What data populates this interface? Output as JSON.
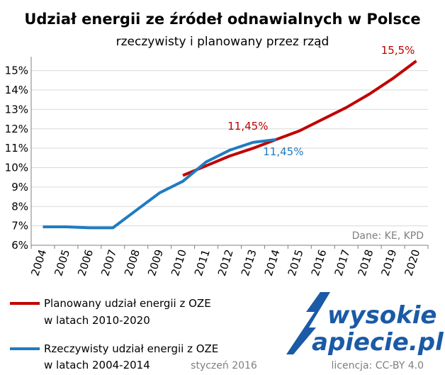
{
  "title": "Udział energii ze źródeł odnawialnych w Polsce",
  "subtitle": "rzeczywisty i planowany przez rząd",
  "source_note": "Dane: KE, KPD",
  "footer": {
    "date": "styczeń 2016",
    "license": "licencja: CC-BY 4.0"
  },
  "logo": {
    "line1": "wysokie",
    "line2": "apiecie.pl"
  },
  "colors": {
    "planned": "#c00000",
    "actual": "#1f7bc1",
    "grid": "#d9d9d9",
    "axis": "#808080"
  },
  "chart_data": {
    "type": "line",
    "x": [
      "2004",
      "2005",
      "2006",
      "2007",
      "2008",
      "2009",
      "2010",
      "2011",
      "2012",
      "2013",
      "2014",
      "2015",
      "2016",
      "2017",
      "2018",
      "2019",
      "2020"
    ],
    "yticks": [
      "6%",
      "7%",
      "8%",
      "9%",
      "10%",
      "11%",
      "12%",
      "13%",
      "14%",
      "15%"
    ],
    "ylim": [
      6,
      15.5
    ],
    "grid": true,
    "series": [
      {
        "name": "Planowany udział energii z OZE w latach 2010-2020",
        "key": "planned",
        "x": [
          "2010",
          "2011",
          "2012",
          "2013",
          "2014",
          "2015",
          "2016",
          "2017",
          "2018",
          "2019",
          "2020"
        ],
        "values": [
          9.6,
          10.1,
          10.6,
          11.0,
          11.45,
          11.9,
          12.5,
          13.1,
          13.8,
          14.6,
          15.5
        ]
      },
      {
        "name": "Rzeczywisty udział energii z OZE w latach 2004-2014",
        "key": "actual",
        "x": [
          "2004",
          "2005",
          "2006",
          "2007",
          "2008",
          "2009",
          "2010",
          "2011",
          "2012",
          "2013",
          "2014"
        ],
        "values": [
          6.95,
          6.95,
          6.9,
          6.9,
          7.8,
          8.7,
          9.3,
          10.3,
          10.9,
          11.3,
          11.45
        ]
      }
    ],
    "annotations": [
      {
        "text": "15,5%",
        "series": "planned",
        "x": "2020"
      },
      {
        "text": "11,45%",
        "series": "planned",
        "x": "2014"
      },
      {
        "text": "11,45%",
        "series": "actual",
        "x": "2014"
      }
    ],
    "legend": [
      {
        "key": "planned",
        "line1": "Planowany udział energii z OZE",
        "line2": "w latach 2010-2020"
      },
      {
        "key": "actual",
        "line1": "Rzeczywisty udział energii z OZE",
        "line2": "w latach 2004-2014"
      }
    ]
  }
}
